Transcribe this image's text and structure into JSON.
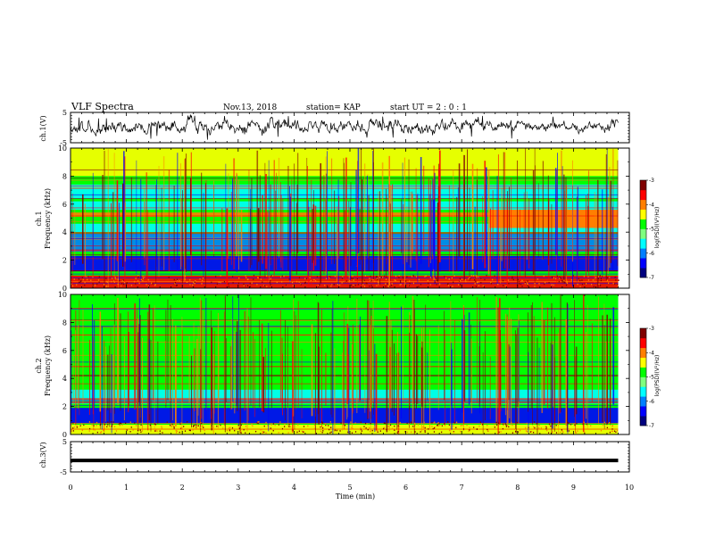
{
  "header": {
    "title": "VLF Spectra",
    "date": "Nov.13, 2018",
    "station": "station= KAP",
    "start": "start  UT =  2 : 0  : 1"
  },
  "xaxis": {
    "label": "Time (min)",
    "range": [
      0,
      10
    ],
    "ticks": [
      "0",
      "1",
      "2",
      "3",
      "4",
      "5",
      "6",
      "7",
      "8",
      "9",
      "10"
    ]
  },
  "ch1_wave": {
    "ylabel": "ch.1(V)",
    "range": [
      -5,
      5
    ],
    "ticks": [
      "5",
      "-5"
    ]
  },
  "ch1_spec": {
    "ylabel_top": "ch.1",
    "ylabel": "Frequency (kHz)",
    "range": [
      0,
      10
    ],
    "ticks": [
      "0",
      "2",
      "4",
      "6",
      "8",
      "10"
    ]
  },
  "ch2_spec": {
    "ylabel_top": "ch.2",
    "ylabel": "Frequency (kHz)",
    "range": [
      0,
      10
    ],
    "ticks": [
      "0",
      "2",
      "4",
      "6",
      "8",
      "10"
    ]
  },
  "ch3_wave": {
    "ylabel": "ch.3(V)",
    "range": [
      -5,
      5
    ],
    "ticks": [
      "5",
      "-5"
    ]
  },
  "colorbar": {
    "label": "log(PSD)(V²/Hz)",
    "range": [
      -7,
      -3
    ],
    "ticks": [
      "-3",
      "-4",
      "-5",
      "-6",
      "-7"
    ],
    "colors": [
      "#00007f",
      "#0000ff",
      "#007fff",
      "#00ffff",
      "#7fff7f",
      "#00ff00",
      "#ffff00",
      "#ff7f00",
      "#ff0000",
      "#7f0000"
    ]
  },
  "chart_data": [
    {
      "type": "line",
      "panel": "ch.1 waveform",
      "ylabel": "ch.1(V)",
      "xlabel": "Time (min)",
      "xlim": [
        0,
        10
      ],
      "ylim": [
        -5,
        5
      ],
      "x_data_end": 9.8,
      "level_segments": [
        {
          "x": [
            0,
            7.5
          ],
          "y_band": [
            -1,
            2
          ]
        },
        {
          "x": [
            7.5,
            9.8
          ],
          "y_band": [
            -1,
            1.5
          ]
        }
      ]
    },
    {
      "type": "heatmap",
      "panel": "ch.1 spectrogram",
      "ylabel": "Frequency (kHz)",
      "xlabel": "Time (min)",
      "xlim": [
        0,
        10
      ],
      "ylim": [
        0,
        10
      ],
      "x_data_end": 9.8,
      "zlabel": "log(PSD)(V²/Hz)",
      "zlim": [
        -7,
        -3
      ],
      "background_level": -4.9,
      "bands": [
        {
          "f": [
            0.0,
            0.9
          ],
          "level": -3.8
        },
        {
          "f": [
            1.2,
            2.3
          ],
          "level": -6.3
        },
        {
          "f": [
            2.6,
            3.9
          ],
          "level": -6.0
        },
        {
          "f": [
            4.0,
            4.6
          ],
          "level": -5.4
        },
        {
          "f": [
            5.1,
            5.4
          ],
          "level": -3.9
        },
        {
          "f": [
            5.6,
            6.2
          ],
          "level": -5.8
        },
        {
          "f": [
            6.4,
            7.4
          ],
          "level": -5.6
        },
        {
          "f": [
            8.0,
            10.0
          ],
          "level": -4.4
        }
      ],
      "segment_after": {
        "x": 7.5,
        "f": [
          4.3,
          5.6
        ],
        "level": -4.0
      }
    },
    {
      "type": "heatmap",
      "panel": "ch.2 spectrogram",
      "ylabel": "Frequency (kHz)",
      "xlabel": "Time (min)",
      "xlim": [
        0,
        10
      ],
      "ylim": [
        0,
        10
      ],
      "x_data_end": 9.8,
      "zlabel": "log(PSD)(V²/Hz)",
      "zlim": [
        -7,
        -3
      ],
      "background_level": -4.8,
      "bands": [
        {
          "f": [
            0.0,
            0.7
          ],
          "level": -4.6
        },
        {
          "f": [
            0.8,
            1.9
          ],
          "level": -6.4
        },
        {
          "f": [
            2.2,
            3.2
          ],
          "level": -5.8
        },
        {
          "f": [
            3.3,
            5.0
          ],
          "level": -5.0
        },
        {
          "f": [
            5.0,
            10.0
          ],
          "level": -4.7
        }
      ]
    },
    {
      "type": "line",
      "panel": "ch.3 waveform",
      "ylabel": "ch.3(V)",
      "xlabel": "Time (min)",
      "xlim": [
        0,
        10
      ],
      "ylim": [
        -5,
        5
      ],
      "x_data_end": 9.8,
      "constant_value": -1.2
    }
  ]
}
